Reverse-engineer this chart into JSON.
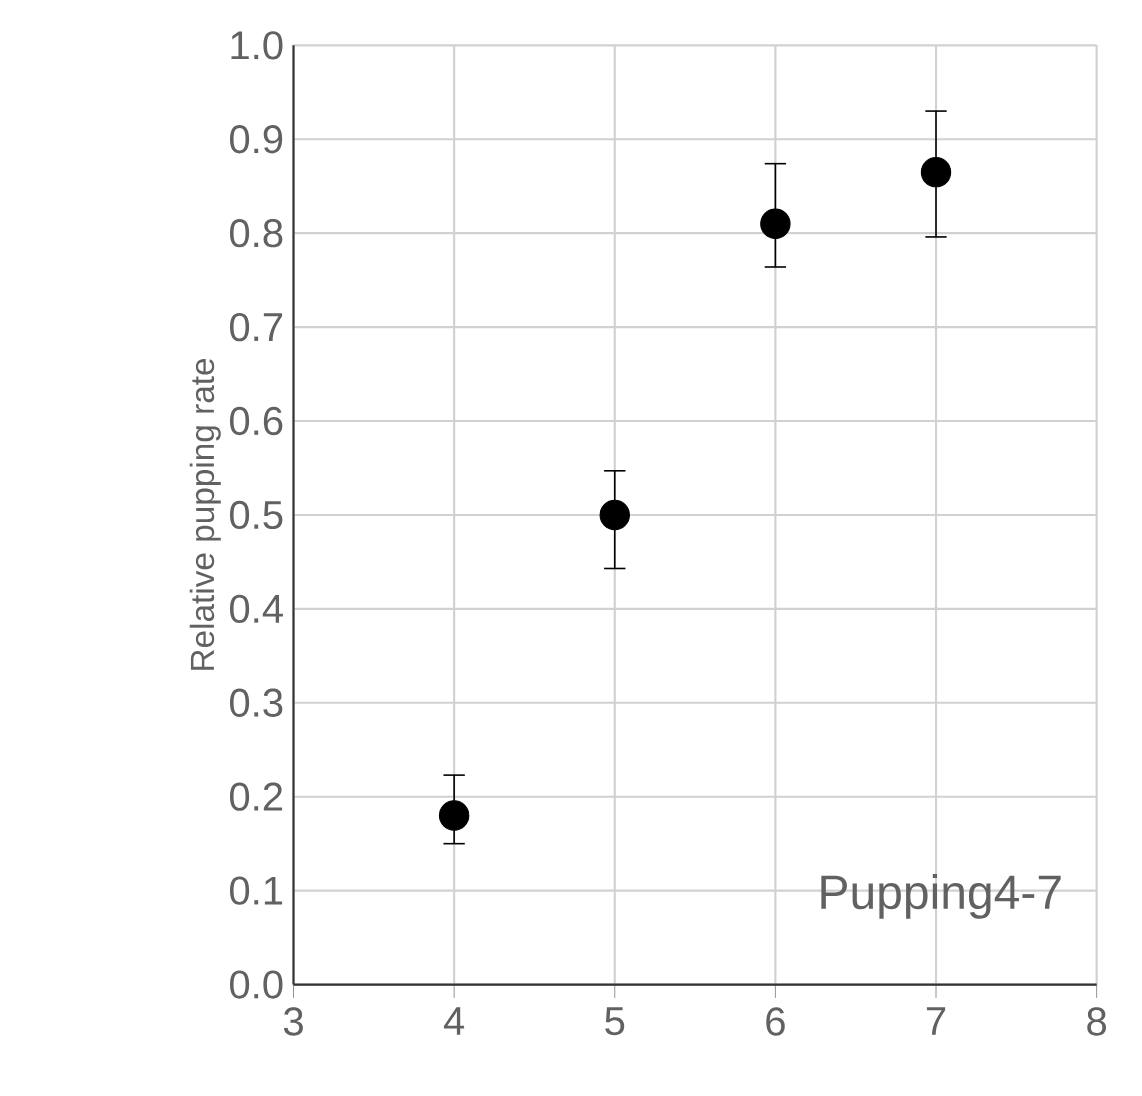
{
  "chart_data": {
    "type": "scatter",
    "ylabel": "Relative pupping rate",
    "annotations": [
      "Pupping4-7"
    ],
    "x": [
      4,
      5,
      6,
      7
    ],
    "values": [
      0.18,
      0.5,
      0.81,
      0.865
    ],
    "errors": [
      [
        0.15,
        0.223
      ],
      [
        0.443,
        0.547
      ],
      [
        0.764,
        0.874
      ],
      [
        0.796,
        0.93
      ]
    ],
    "color": "#000000",
    "marker": "circle",
    "xlim": [
      3,
      8
    ],
    "xticks": [
      3,
      4,
      5,
      6,
      7,
      8
    ],
    "ylim": [
      0,
      1
    ],
    "yticks": [
      {
        "value": 0,
        "label": "0.0"
      },
      {
        "value": 0.1,
        "label": "0.1"
      },
      {
        "value": 0.2,
        "label": "0.2"
      },
      {
        "value": 0.3,
        "label": "0.3"
      },
      {
        "value": 0.4,
        "label": "0.4"
      },
      {
        "value": 0.5,
        "label": "0.5"
      },
      {
        "value": 0.6,
        "label": "0.6"
      },
      {
        "value": 0.7,
        "label": "0.7"
      },
      {
        "value": 0.8,
        "label": "0.8"
      },
      {
        "value": 0.9,
        "label": "0.9"
      },
      {
        "value": 1,
        "label": "1.0"
      }
    ],
    "grid": true
  }
}
